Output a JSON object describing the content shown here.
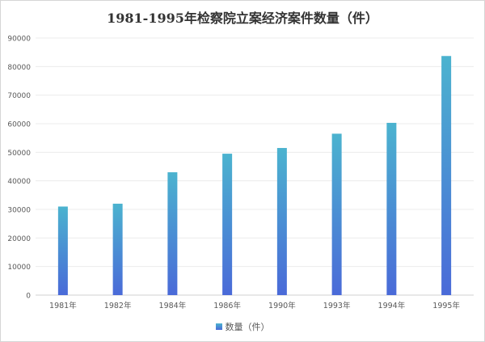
{
  "chart_data": {
    "type": "bar",
    "title": "1981-1995年检察院立案经济案件数量（件）",
    "categories": [
      "1981年",
      "1982年",
      "1984年",
      "1986年",
      "1990年",
      "1993年",
      "1994年",
      "1995年"
    ],
    "series": [
      {
        "name": "数量（件）",
        "values": [
          31000,
          32000,
          43000,
          49500,
          51500,
          56500,
          60300,
          83700
        ]
      }
    ],
    "yticks": [
      "0",
      "10000",
      "20000",
      "30000",
      "40000",
      "50000",
      "60000",
      "70000",
      "80000",
      "90000"
    ],
    "ylim": [
      0,
      90000
    ],
    "grid": true,
    "legend_position": "bottom",
    "colors": {
      "bar_top": "#4bb3cf",
      "bar_bottom": "#4a6ad8",
      "grid": "#ececec",
      "axis": "#d0d0d0",
      "text": "#595959"
    }
  }
}
